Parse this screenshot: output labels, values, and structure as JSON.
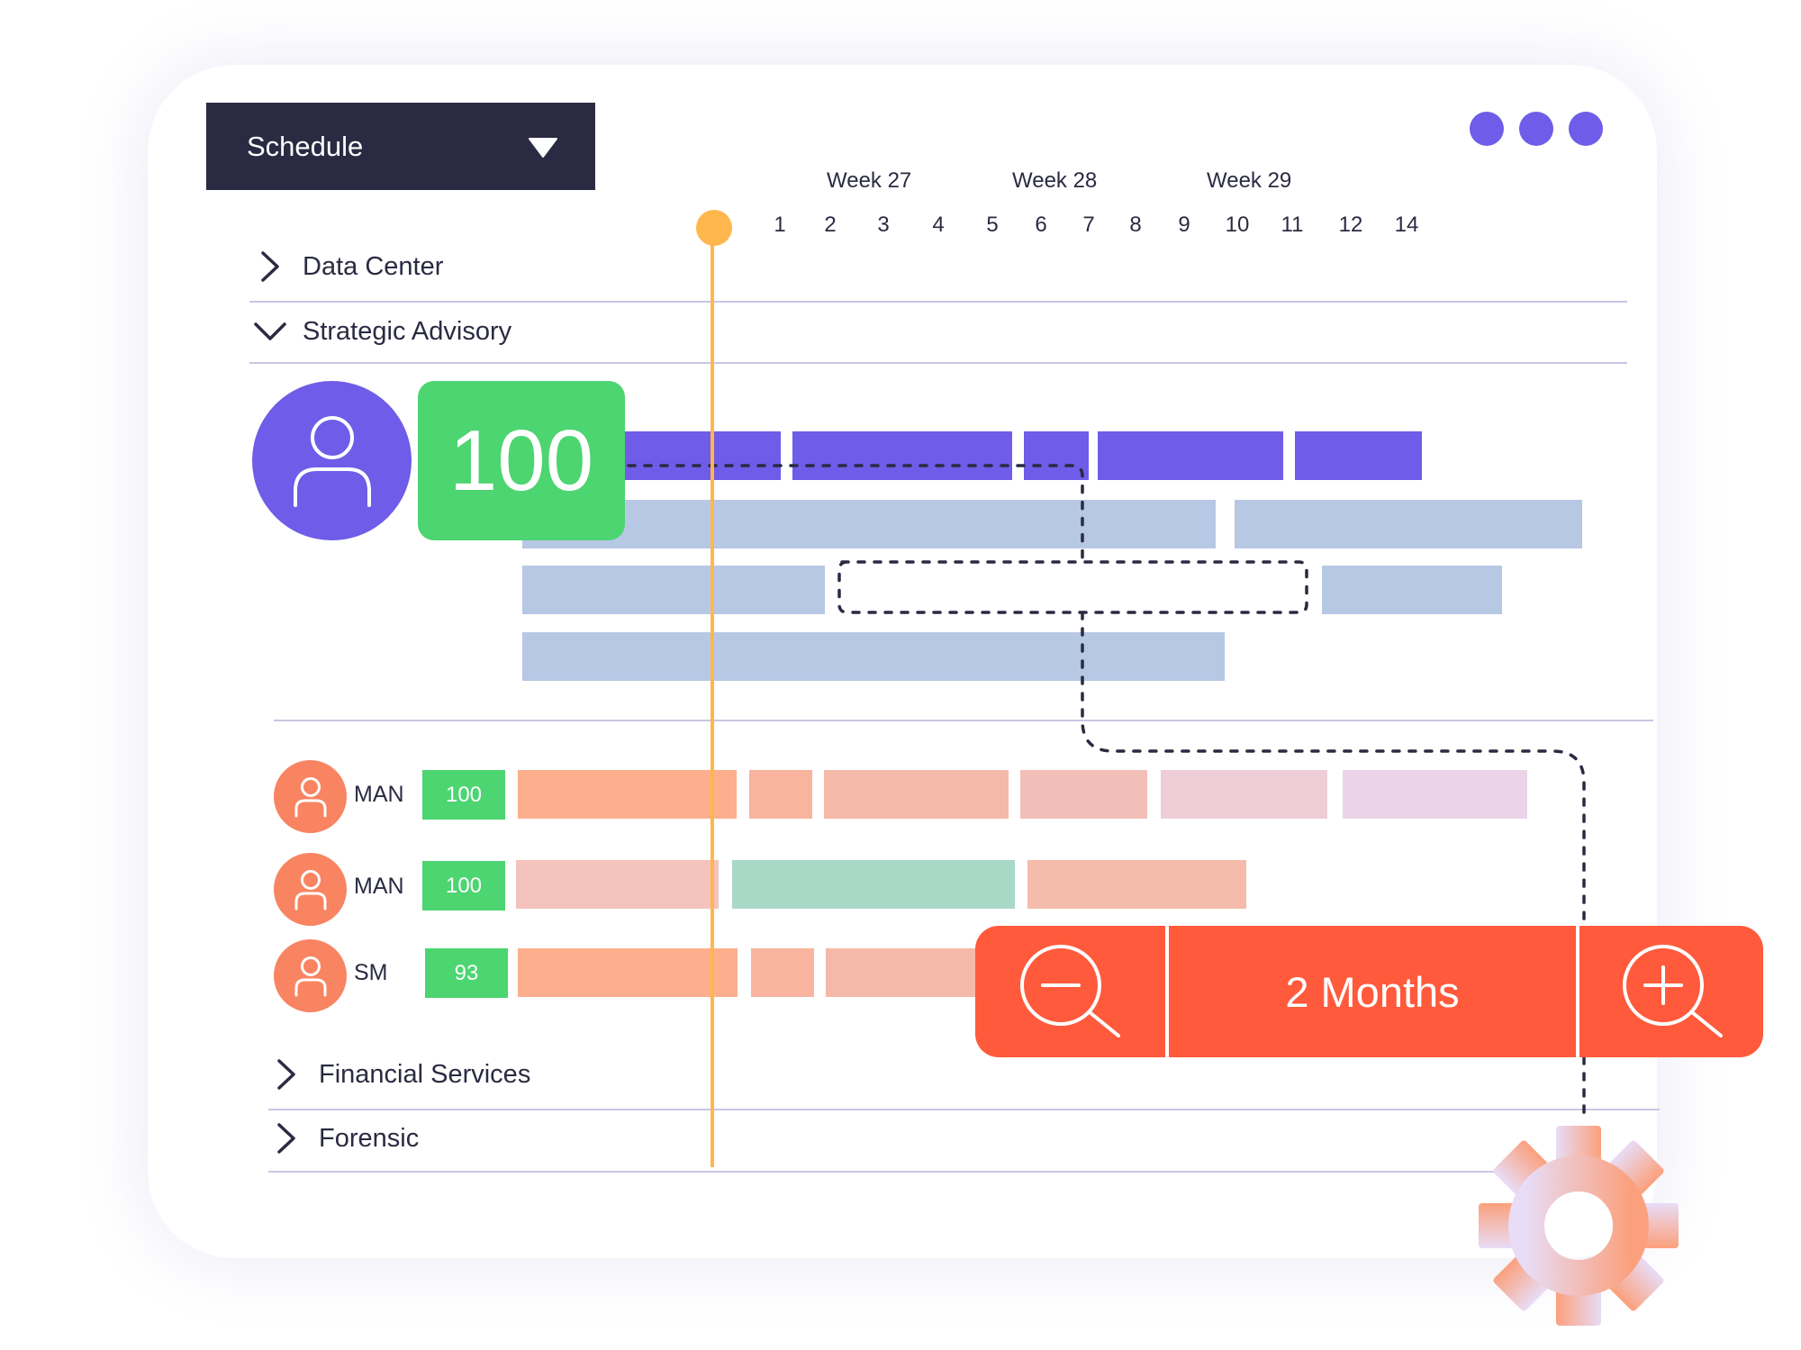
{
  "header": {
    "view_select": "Schedule",
    "week_labels": [
      "Week 27",
      "Week 28",
      "Week 29"
    ],
    "day_labels": [
      "1",
      "2",
      "3",
      "4",
      "5",
      "6",
      "7",
      "8",
      "9",
      "10",
      "11",
      "12",
      "14"
    ]
  },
  "groups": {
    "data_center": "Data Center",
    "strategic_advisory": "Strategic Advisory",
    "financial_services": "Financial Services",
    "forensic": "Forensic"
  },
  "featured_person": {
    "score": "100"
  },
  "team_rows": [
    {
      "role": "MAN",
      "score": "100"
    },
    {
      "role": "MAN",
      "score": "100"
    },
    {
      "role": "SM",
      "score": "93"
    }
  ],
  "zoom": {
    "label": "2 Months"
  },
  "colors": {
    "accent": "#6f5ce8",
    "dark": "#2a2b42",
    "score_green": "#4cd571",
    "zoom_red": "#ff5a3c",
    "today_marker": "#ffb74d",
    "avatar_orange": "#f98462"
  }
}
